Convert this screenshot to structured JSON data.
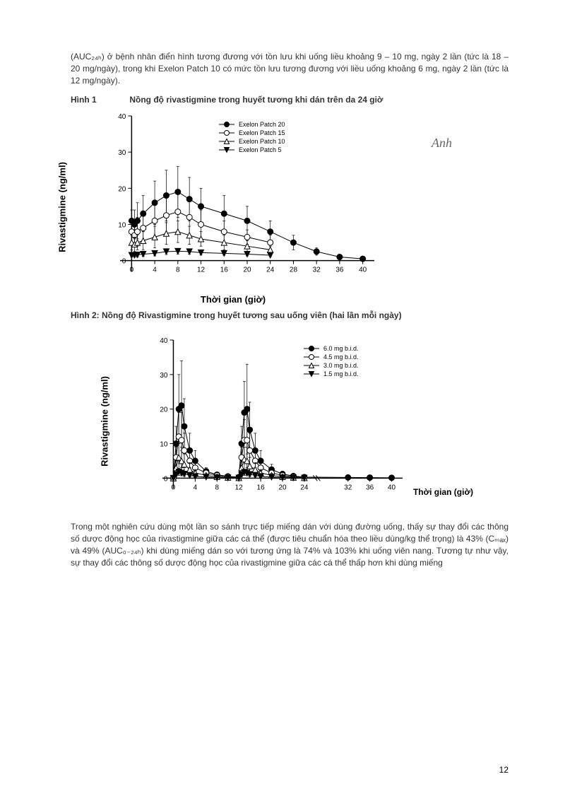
{
  "top_paragraph": "(AUC₂₄ₕ) ở bệnh nhân điển hình tương đương với tồn lưu khi uống liều khoảng 9 – 10 mg, ngày 2 lần (tức là 18 – 20 mg/ngày), trong khi Exelon Patch 10 có mức tồn lưu tương đương với liều uống khoảng 6 mg, ngày 2 lần (tức là 12 mg/ngày).",
  "fig1": {
    "label_prefix": "Hình 1",
    "label_title": "Nồng độ rivastigmine trong huyết tương khi dán trên da 24 giờ",
    "ylabel": "Rivastigmine (ng/ml)",
    "xlabel": "Thời gian (giờ)",
    "type": "line-scatter-errorbar",
    "ylim": [
      -3,
      40
    ],
    "xlim": [
      -2,
      42
    ],
    "yticks": [
      0,
      10,
      20,
      30,
      40
    ],
    "xticks": [
      0,
      4,
      8,
      12,
      16,
      20,
      24,
      28,
      32,
      36,
      40
    ],
    "axis_color": "#000000",
    "background_color": "#ffffff",
    "legend_position": "top-right-inside",
    "series": [
      {
        "name": "Exelon Patch 20",
        "marker": "filled-circle",
        "color": "#000000",
        "x": [
          0,
          0.5,
          1,
          2,
          4,
          6,
          8,
          10,
          12,
          16,
          20,
          24,
          28,
          32,
          36,
          40
        ],
        "y": [
          11,
          10,
          11,
          13,
          16,
          18,
          19,
          17,
          15,
          13,
          11,
          8,
          5,
          2.5,
          1,
          0.5
        ],
        "err": [
          3,
          4,
          5,
          5,
          6,
          7,
          7,
          6,
          5,
          5,
          4,
          3,
          2,
          1,
          0.5,
          0.3
        ]
      },
      {
        "name": "Exelon Patch 15",
        "marker": "open-circle",
        "color": "#000000",
        "x": [
          0,
          0.5,
          1,
          2,
          4,
          6,
          8,
          10,
          12,
          16,
          20,
          24
        ],
        "y": [
          8,
          7,
          8,
          9,
          11,
          12.5,
          13.5,
          12,
          10,
          8,
          6.5,
          5
        ],
        "err": [
          3,
          3,
          4,
          4,
          5,
          5,
          6,
          5,
          4,
          3,
          2,
          2
        ]
      },
      {
        "name": "Exelon Patch 10",
        "marker": "open-triangle",
        "color": "#000000",
        "x": [
          0,
          0.5,
          1,
          2,
          4,
          6,
          8,
          10,
          12,
          16,
          20,
          24
        ],
        "y": [
          5,
          4.5,
          5,
          5.5,
          6.5,
          7.5,
          8,
          7,
          6,
          5,
          4,
          3
        ],
        "err": [
          2,
          2,
          2,
          2.5,
          3,
          3,
          3,
          2.5,
          2,
          2,
          1.5,
          1
        ]
      },
      {
        "name": "Exelon Patch 5",
        "marker": "filled-down-triangle",
        "color": "#000000",
        "x": [
          0,
          0.5,
          1,
          2,
          4,
          6,
          8,
          10,
          12,
          16,
          20,
          24
        ],
        "y": [
          1.5,
          1.5,
          1.6,
          1.8,
          2,
          2.5,
          2.6,
          2.5,
          2.2,
          2,
          1.8,
          1.5
        ],
        "err": [
          0.5,
          0.5,
          0.6,
          0.6,
          0.7,
          0.8,
          0.8,
          0.7,
          0.6,
          0.5,
          0.5,
          0.4
        ]
      }
    ],
    "line_width": 1,
    "marker_size": 4,
    "font_size_ticks": 10,
    "font_size_legend": 9
  },
  "fig2": {
    "label": "Hình 2: Nồng độ Rivastigmine trong huyết tương sau uống viên (hai lần mỗi ngày)",
    "ylabel": "Rivastigmine (ng/ml)",
    "xlabel": "Thời gian (giờ)",
    "type": "line-scatter-errorbar",
    "ylim": [
      -3,
      40
    ],
    "xlim": [
      -2,
      42
    ],
    "yticks": [
      0,
      10,
      20,
      30,
      40
    ],
    "xticks_main": [
      0,
      4,
      8,
      12,
      16,
      20,
      24
    ],
    "xticks_after_break": [
      32,
      36,
      40
    ],
    "axis_break_at": 26,
    "axis_color": "#000000",
    "background_color": "#ffffff",
    "legend_position": "top-right-inside",
    "series": [
      {
        "name": "6.0 mg b.i.d.",
        "marker": "filled-circle",
        "color": "#000000",
        "x": [
          0,
          0.5,
          1,
          1.5,
          2,
          3,
          4,
          6,
          8,
          10,
          12,
          12.5,
          13,
          13.5,
          14,
          15,
          16,
          18,
          20,
          22,
          24,
          32,
          36,
          40
        ],
        "y": [
          0,
          10,
          20,
          21,
          15,
          8,
          5,
          2,
          1,
          0.5,
          0.3,
          10,
          19,
          20,
          14,
          8,
          5,
          2.5,
          1.2,
          0.6,
          0.3,
          0.2,
          0.15,
          0.1
        ],
        "err": [
          0,
          5,
          10,
          13,
          8,
          5,
          3,
          1,
          0.5,
          0.3,
          0.2,
          5,
          9,
          13,
          8,
          5,
          3,
          1.5,
          0.8,
          0.4,
          0.2,
          0.1,
          0.1,
          0.1
        ]
      },
      {
        "name": "4.5 mg b.i.d.",
        "marker": "open-circle",
        "color": "#000000",
        "x": [
          0,
          0.5,
          1,
          1.5,
          2,
          3,
          4,
          6,
          8,
          10,
          12,
          12.5,
          13,
          13.5,
          14,
          15,
          16,
          18,
          20,
          22,
          24
        ],
        "y": [
          0,
          6,
          12,
          11,
          8,
          5,
          3,
          1.5,
          0.8,
          0.4,
          0.2,
          6,
          11,
          11,
          8,
          5,
          3,
          1.5,
          0.8,
          0.4,
          0.2
        ],
        "err": [
          0,
          3,
          7,
          8,
          5,
          3,
          2,
          1,
          0.5,
          0.3,
          0.1,
          3,
          6,
          8,
          5,
          3,
          2,
          1,
          0.5,
          0.3,
          0.1
        ]
      },
      {
        "name": "3.0 mg b.i.d.",
        "marker": "open-triangle",
        "color": "#000000",
        "x": [
          0,
          0.5,
          1,
          1.5,
          2,
          3,
          4,
          6,
          8,
          10,
          12,
          12.5,
          13,
          13.5,
          14,
          15,
          16,
          18,
          20,
          22,
          24
        ],
        "y": [
          0,
          3,
          6,
          5,
          4,
          2.5,
          1.5,
          0.8,
          0.4,
          0.2,
          0.1,
          3,
          5.5,
          5,
          3.5,
          2.5,
          1.5,
          0.8,
          0.4,
          0.2,
          0.1
        ],
        "err": [
          0,
          2,
          4,
          4,
          3,
          2,
          1,
          0.5,
          0.3,
          0.1,
          0.1,
          2,
          3.5,
          4,
          2.5,
          2,
          1,
          0.5,
          0.3,
          0.1,
          0.1
        ]
      },
      {
        "name": "1.5 mg b.i.d.",
        "marker": "filled-down-triangle",
        "color": "#000000",
        "x": [
          0,
          0.5,
          1,
          1.5,
          2,
          3,
          4,
          6,
          8,
          10,
          12,
          12.5,
          13,
          13.5,
          14,
          15,
          16,
          18,
          20,
          22,
          24
        ],
        "y": [
          0,
          1,
          1.8,
          1.5,
          1.2,
          0.8,
          0.5,
          0.3,
          0.15,
          0.1,
          0.05,
          1,
          1.7,
          1.5,
          1.1,
          0.8,
          0.5,
          0.3,
          0.15,
          0.1,
          0.05
        ],
        "err": [
          0,
          0.5,
          1,
          0.8,
          0.6,
          0.4,
          0.3,
          0.2,
          0.1,
          0.05,
          0.03,
          0.5,
          0.9,
          0.8,
          0.6,
          0.4,
          0.3,
          0.2,
          0.1,
          0.05,
          0.03
        ]
      }
    ],
    "line_width": 1,
    "marker_size": 4,
    "font_size_ticks": 10,
    "font_size_legend": 9
  },
  "bottom_paragraph": "Trong một nghiên cứu dùng một lần so sánh trực tiếp miếng dán với dùng đường uống, thấy sự thay đổi các thông số dược động học của rivastigmine giữa các cá thể (được tiêu chuẩn hóa theo liều dùng/kg thể trọng) là 43% (Cₘₐₓ) và 49% (AUC₀₋₂₄ₕ) khi dùng miếng dán so với tương ứng là 74% và 103% khi uống viên nang. Tương tự như vậy, sự thay đổi các thông số dược động học của rivastigmine giữa các cá thể thấp hơn khi dùng miếng",
  "page_number": "12",
  "signature_text": "Anh"
}
